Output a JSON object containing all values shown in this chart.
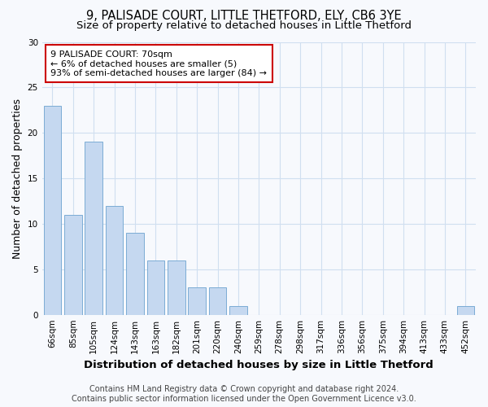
{
  "title_line1": "9, PALISADE COURT, LITTLE THETFORD, ELY, CB6 3YE",
  "title_line2": "Size of property relative to detached houses in Little Thetford",
  "xlabel": "Distribution of detached houses by size in Little Thetford",
  "ylabel": "Number of detached properties",
  "categories": [
    "66sqm",
    "85sqm",
    "105sqm",
    "124sqm",
    "143sqm",
    "163sqm",
    "182sqm",
    "201sqm",
    "220sqm",
    "240sqm",
    "259sqm",
    "278sqm",
    "298sqm",
    "317sqm",
    "336sqm",
    "356sqm",
    "375sqm",
    "394sqm",
    "413sqm",
    "433sqm",
    "452sqm"
  ],
  "values": [
    23,
    11,
    19,
    12,
    9,
    6,
    6,
    3,
    3,
    1,
    0,
    0,
    0,
    0,
    0,
    0,
    0,
    0,
    0,
    0,
    1
  ],
  "bar_color": "#c5d8f0",
  "bar_edge_color": "#7bacd4",
  "ylim": [
    0,
    30
  ],
  "yticks": [
    0,
    5,
    10,
    15,
    20,
    25,
    30
  ],
  "annotation_title": "9 PALISADE COURT: 70sqm",
  "annotation_line2": "← 6% of detached houses are smaller (5)",
  "annotation_line3": "93% of semi-detached houses are larger (84) →",
  "annotation_box_color": "#ffffff",
  "annotation_border_color": "#cc0000",
  "footer_line1": "Contains HM Land Registry data © Crown copyright and database right 2024.",
  "footer_line2": "Contains public sector information licensed under the Open Government Licence v3.0.",
  "bg_color": "#f7f9fd",
  "plot_bg_color": "#f7f9fd",
  "grid_color": "#d0dff0",
  "title_fontsize": 10.5,
  "subtitle_fontsize": 9.5,
  "axis_label_fontsize": 9,
  "tick_fontsize": 7.5,
  "annotation_fontsize": 8,
  "footer_fontsize": 7
}
